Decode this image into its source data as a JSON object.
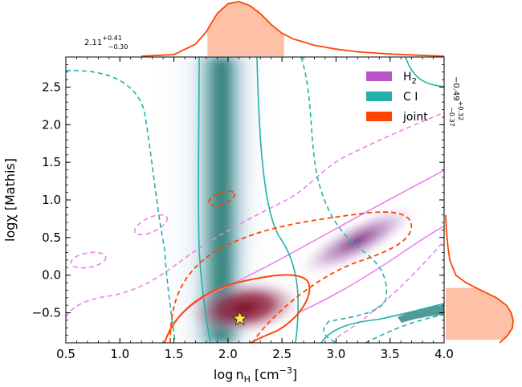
{
  "chart_data": {
    "type": "contour",
    "xlabel_main": "log n",
    "xlabel_sub": "H",
    "xlabel_unit": " [cm",
    "xlabel_exp": "−3",
    "xlabel_close": "]",
    "ylabel": "logχ [Mathis]",
    "xlim": [
      0.5,
      4.0
    ],
    "ylim": [
      -0.9,
      2.9
    ],
    "xticks": [
      0.5,
      1.0,
      1.5,
      2.0,
      2.5,
      3.0,
      3.5,
      4.0
    ],
    "xtick_labels": [
      "0.5",
      "1.0",
      "1.5",
      "2.0",
      "2.5",
      "3.0",
      "3.5",
      "4.0"
    ],
    "yticks": [
      -0.5,
      0.0,
      0.5,
      1.0,
      1.5,
      2.0,
      2.5
    ],
    "ytick_labels": [
      "−0.5",
      "0.0",
      "0.5",
      "1.0",
      "1.5",
      "2.0",
      "2.5"
    ],
    "legend": [
      {
        "label": "H",
        "sub": "2",
        "color": "#bb55cc"
      },
      {
        "label": "C I",
        "sub": "",
        "color": "#20b2aa"
      },
      {
        "label": "joint",
        "sub": "",
        "color": "#ff4500"
      }
    ],
    "best_fit": {
      "x": 2.11,
      "y": -0.58
    },
    "annotations": {
      "x_value": "2.11",
      "x_plus": "+0.41",
      "x_minus": "−0.30",
      "y_value": "−0.49",
      "y_plus": "+0.32",
      "y_minus": "−0.37"
    },
    "colors": {
      "h2": "#ee82ee",
      "ci": "#20b2aa",
      "joint": "#ff4500",
      "marginal_fill": "#ffc0a8",
      "marginal_line": "#ff4500",
      "star": "#ffee33"
    },
    "marginal_x": {
      "x": [
        1.2,
        1.5,
        1.7,
        1.8,
        1.9,
        2.0,
        2.1,
        2.2,
        2.3,
        2.4,
        2.5,
        2.6,
        2.8,
        3.0,
        3.2,
        3.5,
        3.8,
        4.0
      ],
      "density": [
        0.0,
        0.03,
        0.22,
        0.45,
        0.78,
        0.96,
        1.0,
        0.93,
        0.78,
        0.58,
        0.42,
        0.32,
        0.2,
        0.13,
        0.08,
        0.04,
        0.015,
        0.0
      ],
      "shade": [
        1.81,
        2.52
      ]
    },
    "marginal_y": {
      "y": [
        -0.9,
        -0.8,
        -0.7,
        -0.6,
        -0.5,
        -0.4,
        -0.3,
        -0.2,
        -0.1,
        0.0,
        0.2,
        0.4,
        0.6,
        0.8
      ],
      "density": [
        0.8,
        0.92,
        0.99,
        1.0,
        0.97,
        0.9,
        0.75,
        0.52,
        0.3,
        0.15,
        0.06,
        0.03,
        0.01,
        0.0
      ],
      "shade": [
        -0.86,
        -0.17
      ]
    }
  }
}
